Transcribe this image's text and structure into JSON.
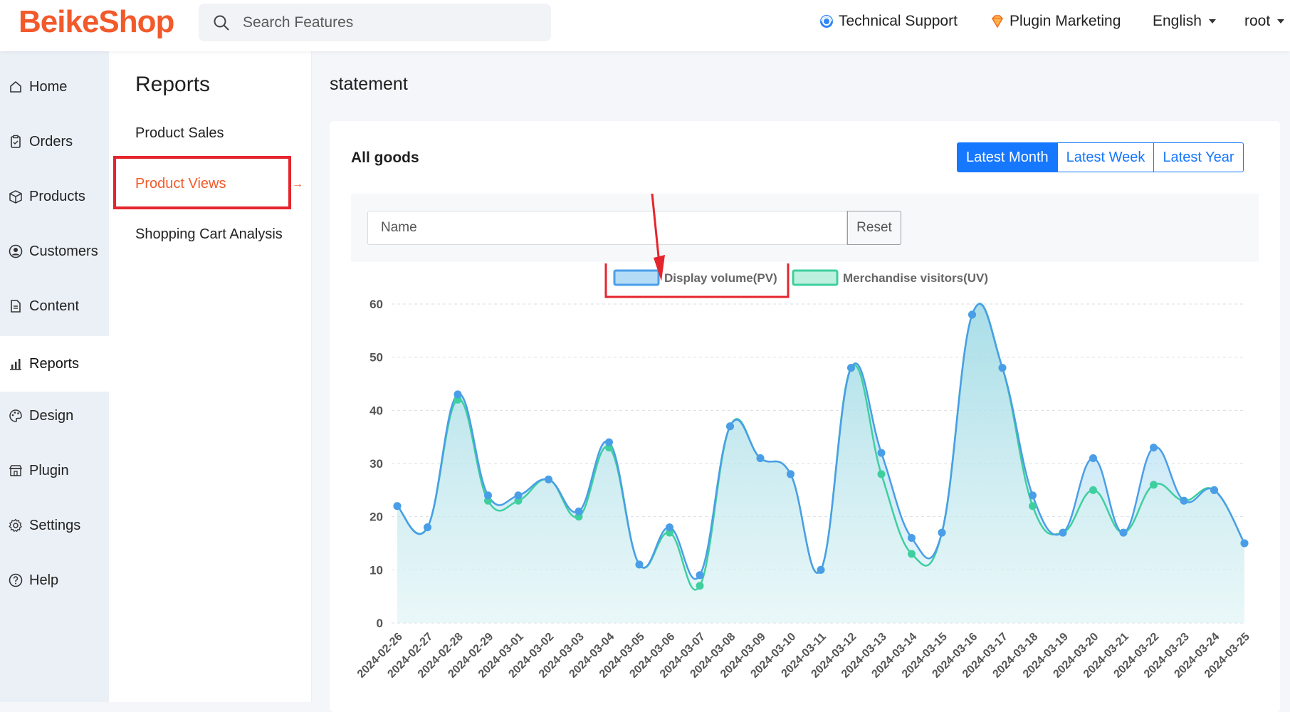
{
  "header": {
    "logo": "BeikeShop",
    "search_placeholder": "Search Features",
    "technical_support": "Technical Support",
    "plugin_marketing": "Plugin Marketing",
    "language": "English",
    "user": "root"
  },
  "sidebar": {
    "items": [
      {
        "label": "Home",
        "icon": "home-icon"
      },
      {
        "label": "Orders",
        "icon": "clipboard-icon"
      },
      {
        "label": "Products",
        "icon": "box-icon"
      },
      {
        "label": "Customers",
        "icon": "user-circle-icon"
      },
      {
        "label": "Content",
        "icon": "document-icon"
      },
      {
        "label": "Reports",
        "icon": "bar-chart-icon"
      },
      {
        "label": "Design",
        "icon": "palette-icon"
      },
      {
        "label": "Plugin",
        "icon": "store-icon"
      },
      {
        "label": "Settings",
        "icon": "gear-icon"
      },
      {
        "label": "Help",
        "icon": "help-icon"
      }
    ]
  },
  "subnav": {
    "title": "Reports",
    "items": [
      "Product Sales",
      "Product Views",
      "Shopping Cart Analysis"
    ]
  },
  "main": {
    "heading": "statement",
    "card_title": "All goods",
    "ranges": [
      "Latest Month",
      "Latest Week",
      "Latest Year"
    ],
    "name_placeholder": "Name",
    "reset_label": "Reset"
  },
  "chart_data": {
    "type": "area",
    "x": [
      "2024-02-26",
      "2024-02-27",
      "2024-02-28",
      "2024-02-29",
      "2024-03-01",
      "2024-03-02",
      "2024-03-03",
      "2024-03-04",
      "2024-03-05",
      "2024-03-06",
      "2024-03-07",
      "2024-03-08",
      "2024-03-09",
      "2024-03-10",
      "2024-03-11",
      "2024-03-12",
      "2024-03-13",
      "2024-03-14",
      "2024-03-15",
      "2024-03-16",
      "2024-03-17",
      "2024-03-18",
      "2024-03-19",
      "2024-03-20",
      "2024-03-21",
      "2024-03-22",
      "2024-03-23",
      "2024-03-24",
      "2024-03-25"
    ],
    "series": [
      {
        "name": "Display volume(PV)",
        "color": "#4a9ee8",
        "values": [
          22,
          18,
          43,
          24,
          24,
          27,
          21,
          34,
          11,
          18,
          9,
          37,
          31,
          28,
          10,
          48,
          32,
          16,
          17,
          58,
          48,
          24,
          17,
          31,
          17,
          33,
          23,
          25,
          15
        ]
      },
      {
        "name": "Merchandise visitors(UV)",
        "color": "#3fcf9f",
        "values": [
          22,
          18,
          42,
          23,
          23,
          27,
          20,
          33,
          11,
          17,
          7,
          37,
          31,
          28,
          10,
          48,
          28,
          13,
          17,
          58,
          48,
          22,
          17,
          25,
          17,
          26,
          23,
          25,
          15
        ]
      }
    ],
    "ylim": [
      0,
      60
    ],
    "yticks": [
      0,
      10,
      20,
      30,
      40,
      50,
      60
    ],
    "grid": true,
    "legend": "top-center"
  }
}
